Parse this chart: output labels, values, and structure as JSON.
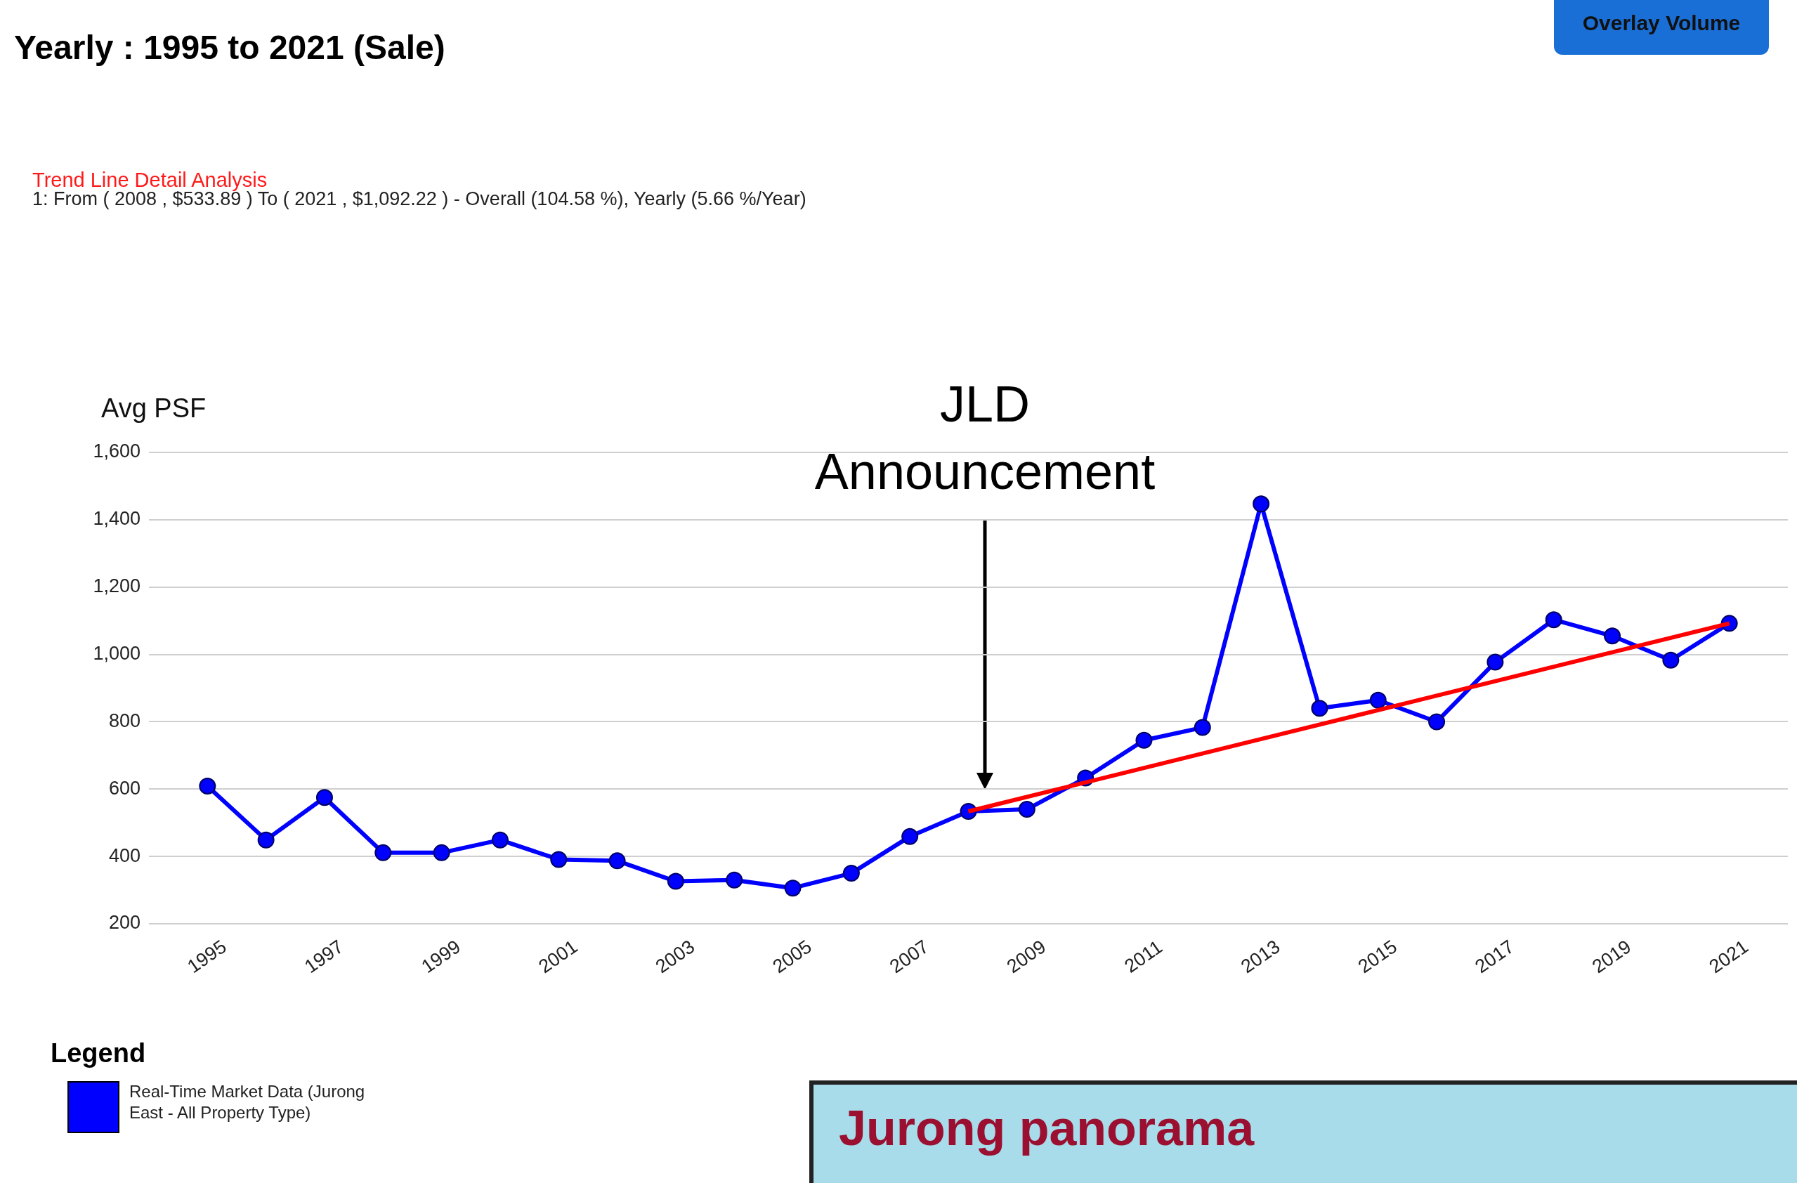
{
  "chart_data": {
    "type": "line",
    "title": "Yearly : 1995 to 2021 (Sale)",
    "ylabel": "Avg PSF",
    "legend_title": "Legend",
    "legend": "bottom left",
    "grid": "y",
    "marker": "circle",
    "line_style": "solid",
    "x": [
      1995,
      1996,
      1997,
      1998,
      1999,
      2000,
      2001,
      2002,
      2003,
      2004,
      2005,
      2006,
      2007,
      2008,
      2009,
      2010,
      2011,
      2012,
      2013,
      2014,
      2015,
      2016,
      2017,
      2018,
      2019,
      2020,
      2021
    ],
    "xlim": [
      1994,
      2022
    ],
    "xticks": [
      1995,
      1997,
      1999,
      2001,
      2003,
      2005,
      2007,
      2009,
      2011,
      2013,
      2015,
      2017,
      2019,
      2021
    ],
    "ylim": [
      200,
      1600
    ],
    "yticks": [
      200,
      400,
      600,
      800,
      {
        "value": 1000,
        "label": "1,000"
      },
      {
        "value": 1200,
        "label": "1,200"
      },
      {
        "value": 1400,
        "label": "1,400"
      },
      {
        "value": 1600,
        "label": "1,600"
      }
    ],
    "series": [
      {
        "name": "Real-Time Market Data (Jurong East - All Property Type)",
        "color": "#0000ff",
        "values": [
          609,
          449,
          575,
          411,
          411,
          449,
          391,
          387,
          326,
          330,
          306,
          350,
          459,
          533.89,
          540,
          633,
          745,
          783,
          1447,
          840,
          864,
          800,
          977,
          1103,
          1055,
          983,
          1092.22
        ]
      },
      {
        "type": "line",
        "color": "#ff0000",
        "marker": "none",
        "x": [
          2008,
          2021
        ],
        "values": [
          533.89,
          1092.22
        ]
      }
    ],
    "annotations": [
      "Trend Line Detail Analysis",
      "1: From ( 2008 , $533.89 ) To ( 2021 , $1,092.22 ) - Overall (104.58 %), Yearly (5.66 %/Year)",
      "JLD Announcement",
      "Overlay Volume",
      "Jurong panorama"
    ]
  }
}
